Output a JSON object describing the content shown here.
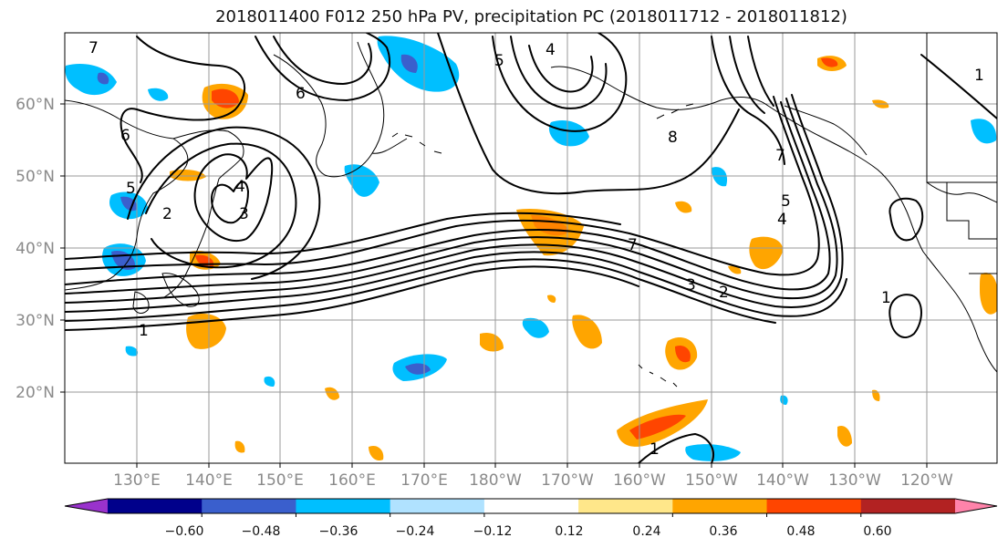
{
  "title": "2018011400 F012 250 hPa PV, precipitation PC (2018011712 - 2018011812)",
  "lat_labels": [
    "60°N",
    "50°N",
    "40°N",
    "30°N",
    "20°N"
  ],
  "lon_labels": [
    "130°E",
    "140°E",
    "150°E",
    "160°E",
    "170°E",
    "180°W",
    "170°W",
    "160°W",
    "150°W",
    "140°W",
    "130°W",
    "120°W"
  ],
  "contour_labels": [
    "7",
    "6",
    "5",
    "4",
    "3",
    "2",
    "1",
    "7",
    "8",
    "1",
    "7",
    "5",
    "4",
    "3",
    "2",
    "1",
    "6",
    "5",
    "4",
    "1"
  ],
  "colorbar": {
    "ticks": [
      "−0.60",
      "−0.48",
      "−0.36",
      "−0.24",
      "−0.12",
      "0.12",
      "0.24",
      "0.36",
      "0.48",
      "0.60"
    ],
    "colors": [
      "#9932cc",
      "#00008b",
      "#3a5fcd",
      "#00bfff",
      "#b0e2ff",
      "#ffffff",
      "#ffe78a",
      "#ffa500",
      "#ff4500",
      "#b22222",
      "#ff83aa"
    ]
  }
}
